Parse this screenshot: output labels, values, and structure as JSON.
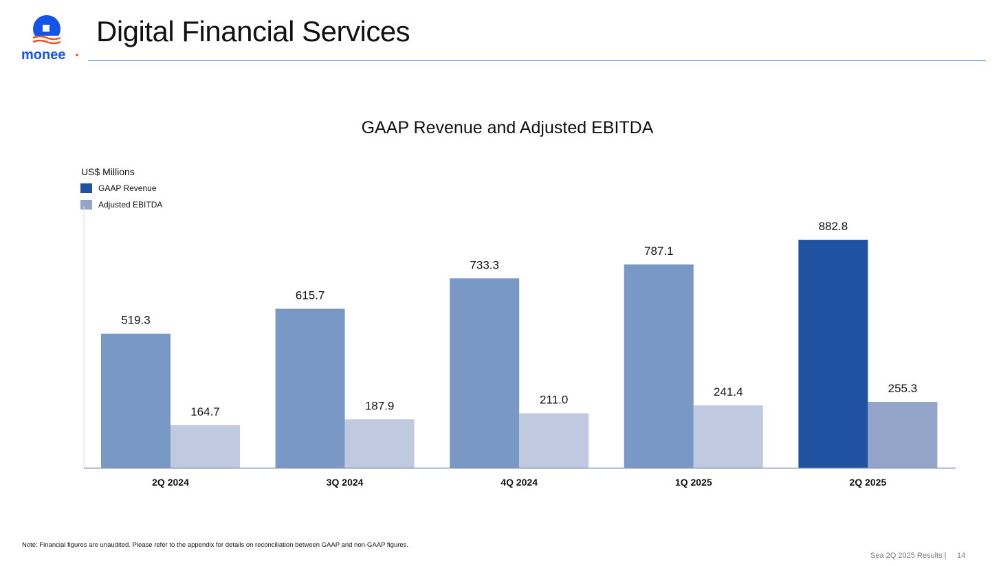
{
  "header": {
    "title": "Digital Financial Services",
    "logo_text": "monee"
  },
  "chart_data": {
    "type": "bar",
    "title": "GAAP Revenue and Adjusted EBITDA",
    "ylabel": "US$ Millions",
    "xlabel": "",
    "ylim": [
      0,
      1000
    ],
    "grid": false,
    "legend_position": "top-left",
    "categories": [
      "2Q 2024",
      "3Q 2024",
      "4Q 2024",
      "1Q 2025",
      "2Q 2025"
    ],
    "series": [
      {
        "name": "GAAP Revenue",
        "values": [
          519.3,
          615.7,
          733.3,
          787.1,
          882.8
        ],
        "labels": [
          "519.3",
          "615.7",
          "733.3",
          "787.1",
          "882.8"
        ],
        "color": "#7A98C6",
        "highlight_color": "#1F52A0"
      },
      {
        "name": "Adjusted EBITDA",
        "values": [
          164.7,
          187.9,
          211.0,
          241.4,
          255.3
        ],
        "labels": [
          "164.7",
          "187.9",
          "211.0",
          "241.4",
          "255.3"
        ],
        "color": "#BFC9E0",
        "highlight_color": "#93A6C9"
      }
    ],
    "highlight_index": 4
  },
  "footer": {
    "note": "Note: Financial figures are unaudited. Please refer to the appendix for details on reconciliation between GAAP and non-GAAP figures.",
    "deck": "Sea 2Q 2025 Results |",
    "page": "14"
  }
}
